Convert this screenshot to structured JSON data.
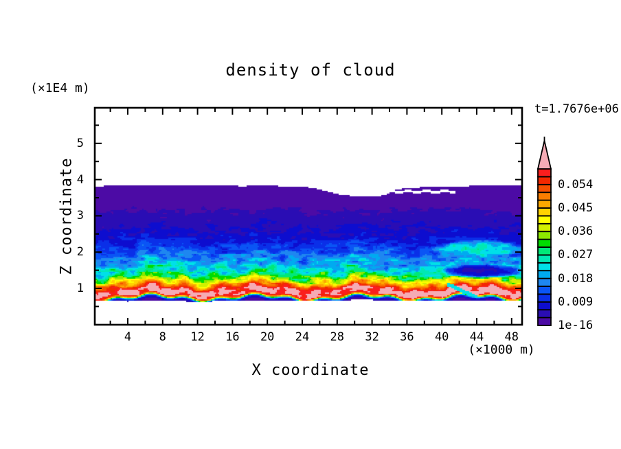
{
  "figure": {
    "title": "density of cloud",
    "time_annotation": "t=1.7676e+06"
  },
  "x_axis": {
    "label": "X coordinate",
    "unit": "(×1000 m)",
    "major_ticks": [
      4,
      8,
      12,
      16,
      20,
      24,
      28,
      32,
      36,
      40,
      44,
      48
    ],
    "minor_ticks": [
      2,
      6,
      10,
      14,
      18,
      22,
      26,
      30,
      34,
      38,
      42,
      46
    ],
    "range": [
      0,
      49.3
    ]
  },
  "y_axis": {
    "label": "Z coordinate",
    "unit": "(×1E4 m)",
    "major_ticks": [
      1,
      2,
      3,
      4,
      5
    ],
    "minor_ticks": [
      0.5,
      1.5,
      2.5,
      3.5,
      4.5,
      5.5
    ],
    "range": [
      0,
      6.0
    ]
  },
  "colorbar": {
    "labels": [
      {
        "text": "0.054",
        "value": 0.054
      },
      {
        "text": "0.045",
        "value": 0.045
      },
      {
        "text": "0.036",
        "value": 0.036
      },
      {
        "text": "0.027",
        "value": 0.027
      },
      {
        "text": "0.018",
        "value": 0.018
      },
      {
        "text": "0.009",
        "value": 0.009
      },
      {
        "text": "1e-16",
        "value": 0.0
      }
    ],
    "n_segments": 20,
    "level_step": 0.003,
    "min_level": "1e-16",
    "max_level": 0.06,
    "over_color": "#f5abb5",
    "segment_colors_bottom_to_top": [
      "#4c0ba5",
      "#2a0db4",
      "#0d0dcf",
      "#0a2fe8",
      "#0a55f5",
      "#1e87f0",
      "#00aaf0",
      "#00e0e8",
      "#00e8b4",
      "#00e878",
      "#00dc00",
      "#8ce800",
      "#d2f000",
      "#ffff00",
      "#ffd200",
      "#fca800",
      "#fa7d00",
      "#f55000",
      "#f22800",
      "#fa1e1e"
    ]
  },
  "chart_data": {
    "type": "heatmap",
    "subtype": "filled-contour",
    "title": "density of cloud",
    "xlabel": "X coordinate (×1000 m)",
    "ylabel": "Z coordinate (×1E4 m)",
    "time_label": "t=1.7676e+06",
    "x_range": [
      0,
      49.3
    ],
    "z_range": [
      0,
      6.0
    ],
    "contour_levels_min": "1e-16",
    "contour_level_step": 0.003,
    "contour_levels_max": 0.06,
    "legend_position": "right-colorbar",
    "grid": false,
    "cloud_top_z": [
      [
        0,
        3.79
      ],
      [
        2,
        3.84
      ],
      [
        5,
        3.85
      ],
      [
        8,
        3.83
      ],
      [
        11,
        3.85
      ],
      [
        14,
        3.84
      ],
      [
        17,
        3.82
      ],
      [
        20,
        3.83
      ],
      [
        23,
        3.81
      ],
      [
        25,
        3.78
      ],
      [
        26.5,
        3.7
      ],
      [
        28,
        3.6
      ],
      [
        30,
        3.54
      ],
      [
        32,
        3.53
      ],
      [
        33.5,
        3.57
      ],
      [
        34.5,
        3.7
      ],
      [
        36,
        3.77
      ],
      [
        38,
        3.79
      ],
      [
        40,
        3.8
      ],
      [
        42,
        3.81
      ],
      [
        44,
        3.83
      ],
      [
        46,
        3.85
      ],
      [
        48,
        3.84
      ],
      [
        50,
        3.81
      ]
    ],
    "cloud_base_z": [
      [
        0,
        0.655
      ],
      [
        4,
        0.64
      ],
      [
        8,
        0.66
      ],
      [
        12,
        0.63
      ],
      [
        16,
        0.655
      ],
      [
        20,
        0.645
      ],
      [
        24,
        0.66
      ],
      [
        28,
        0.67
      ],
      [
        31,
        0.685
      ],
      [
        34,
        0.665
      ],
      [
        38,
        0.65
      ],
      [
        42,
        0.67
      ],
      [
        46,
        0.655
      ],
      [
        50,
        0.66
      ]
    ],
    "mean_density_profile": [
      [
        0.6,
        0.002
      ],
      [
        0.66,
        0.004
      ],
      [
        0.7,
        0.01
      ],
      [
        0.73,
        0.022
      ],
      [
        0.76,
        0.04
      ],
      [
        0.8,
        0.058
      ],
      [
        0.86,
        0.063
      ],
      [
        0.97,
        0.062
      ],
      [
        1.04,
        0.055
      ],
      [
        1.12,
        0.047
      ],
      [
        1.2,
        0.04
      ],
      [
        1.28,
        0.034
      ],
      [
        1.38,
        0.028
      ],
      [
        1.5,
        0.024
      ],
      [
        1.65,
        0.021
      ],
      [
        1.8,
        0.017
      ],
      [
        2.0,
        0.0135
      ],
      [
        2.2,
        0.0105
      ],
      [
        2.4,
        0.008
      ],
      [
        2.6,
        0.0062
      ],
      [
        2.85,
        0.0048
      ],
      [
        3.1,
        0.0032
      ],
      [
        3.3,
        0.0022
      ],
      [
        3.6,
        0.0016
      ],
      [
        3.9,
        0.0013
      ]
    ],
    "turbulence_amplitude_profile": [
      [
        0.6,
        0.14
      ],
      [
        1.05,
        0.16
      ],
      [
        1.25,
        0.3
      ],
      [
        1.45,
        0.48
      ],
      [
        2.6,
        0.5
      ],
      [
        3.0,
        0.48
      ],
      [
        3.5,
        0.38
      ],
      [
        4.0,
        0.35
      ]
    ],
    "band_wave": {
      "a1": 0.07,
      "k1": 0.52,
      "p1": 1.1,
      "a2": 0.045,
      "k2": 1.6,
      "p2": 0.4
    },
    "features": [
      {
        "type": "erase_band",
        "x0": 33.6,
        "x1": 41.6,
        "z0": 3.635,
        "z1": 3.705
      },
      {
        "type": "blend_ellipse",
        "cx": 44.2,
        "cz": 2.08,
        "rx": 5.5,
        "rz": 0.26,
        "value": 0.0235
      },
      {
        "type": "blend_ellipse",
        "cx": 44.5,
        "cz": 1.47,
        "rx": 4.7,
        "rz": 0.2,
        "value": 0.0055
      },
      {
        "type": "cap_segment",
        "x0": 40.6,
        "z0": 1.12,
        "x1": 45.4,
        "z1": 0.6,
        "halfwidth": 0.055,
        "value": 0.022
      }
    ]
  }
}
